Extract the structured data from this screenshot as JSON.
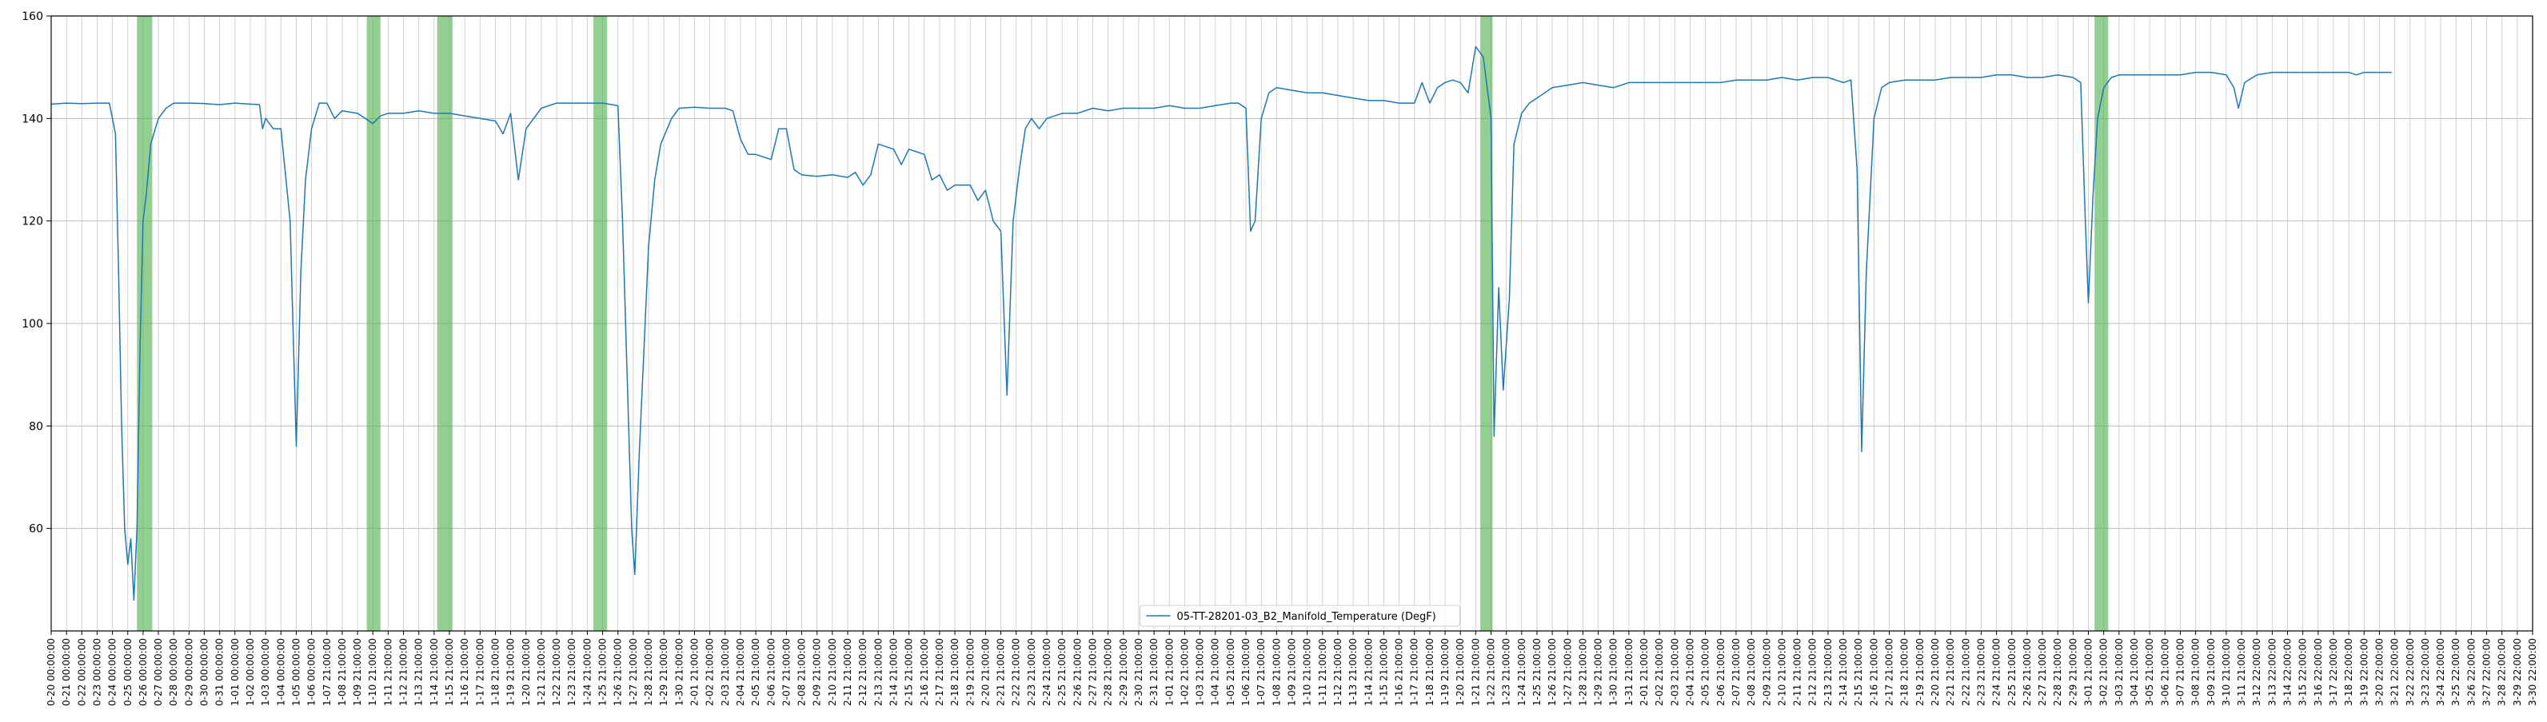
{
  "chart_data": {
    "type": "line",
    "title": "",
    "xlabel": "",
    "ylabel": "",
    "ylim": [
      40,
      160
    ],
    "y_ticks": [
      60,
      80,
      100,
      120,
      140,
      160
    ],
    "grid": true,
    "legend_position": "bottom-center",
    "x_tick_labels": [
      "0-20 00:00:00",
      "0-21 00:00:00",
      "0-22 00:00:00",
      "0-23 00:00:00",
      "0-24 00:00:00",
      "0-25 00:00:00",
      "0-26 00:00:00",
      "0-27 00:00:00",
      "0-28 00:00:00",
      "0-29 00:00:00",
      "0-30 00:00:00",
      "0-31 00:00:00",
      "1-01 00:00:00",
      "1-02 00:00:00",
      "1-03 00:00:00",
      "1-04 00:00:00",
      "1-05 00:00:00",
      "1-06 00:00:00",
      "1-07 21:00:00",
      "1-08 21:00:00",
      "1-09 21:00:00",
      "1-10 21:00:00",
      "1-11 21:00:00",
      "1-12 21:00:00",
      "1-13 21:00:00",
      "1-14 21:00:00",
      "1-15 21:00:00",
      "1-16 21:00:00",
      "1-17 21:00:00",
      "1-18 21:00:00",
      "1-19 21:00:00",
      "1-20 21:00:00",
      "1-21 21:00:00",
      "1-22 21:00:00",
      "1-23 21:00:00",
      "1-24 21:00:00",
      "1-25 21:00:00",
      "1-26 21:00:00",
      "1-27 21:00:00",
      "1-28 21:00:00",
      "1-29 21:00:00",
      "1-30 21:00:00",
      "2-01 21:00:00",
      "2-02 21:00:00",
      "2-03 21:00:00",
      "2-04 21:00:00",
      "2-05 21:00:00",
      "2-06 21:00:00",
      "2-07 21:00:00",
      "2-08 21:00:00",
      "2-09 21:00:00",
      "2-10 21:00:00",
      "2-11 21:00:00",
      "2-12 21:00:00",
      "2-13 21:00:00",
      "2-14 21:00:00",
      "2-15 21:00:00",
      "2-16 21:00:00",
      "2-17 21:00:00",
      "2-18 21:00:00",
      "2-19 21:00:00",
      "2-20 21:00:00",
      "2-21 21:00:00",
      "2-22 21:00:00",
      "2-23 21:00:00",
      "2-24 21:00:00",
      "2-25 21:00:00",
      "2-26 21:00:00",
      "2-27 21:00:00",
      "2-28 21:00:00",
      "2-29 21:00:00",
      "2-30 21:00:00",
      "2-31 21:00:00",
      "1-01 21:00:00",
      "1-02 21:00:00",
      "1-03 21:00:00",
      "1-04 21:00:00",
      "1-05 21:00:00",
      "1-06 21:00:00",
      "1-07 21:00:00",
      "1-08 21:00:00",
      "1-09 21:00:00",
      "1-10 21:00:00",
      "1-11 21:00:00",
      "1-12 21:00:00",
      "1-13 21:00:00",
      "1-14 21:00:00",
      "1-15 21:00:00",
      "1-16 21:00:00",
      "1-17 21:00:00",
      "1-18 21:00:00",
      "1-19 21:00:00",
      "1-20 21:00:00",
      "1-21 21:00:00",
      "1-22 21:00:00",
      "1-23 21:00:00",
      "1-24 21:00:00",
      "1-25 21:00:00",
      "1-26 21:00:00",
      "1-27 21:00:00",
      "1-28 21:00:00",
      "1-29 21:00:00",
      "1-30 21:00:00",
      "1-31 21:00:00",
      "2-01 21:00:00",
      "2-02 21:00:00",
      "2-03 21:00:00",
      "2-04 21:00:00",
      "2-05 21:00:00",
      "2-06 21:00:00",
      "2-07 21:00:00",
      "2-08 21:00:00",
      "2-09 21:00:00",
      "2-10 21:00:00",
      "2-11 21:00:00",
      "2-12 21:00:00",
      "2-13 21:00:00",
      "2-14 21:00:00",
      "2-15 21:00:00",
      "2-16 21:00:00",
      "2-17 21:00:00",
      "2-18 21:00:00",
      "2-19 21:00:00",
      "2-20 21:00:00",
      "2-21 21:00:00",
      "2-22 21:00:00",
      "2-23 21:00:00",
      "2-24 21:00:00",
      "2-25 21:00:00",
      "2-26 21:00:00",
      "2-27 21:00:00",
      "2-28 21:00:00",
      "2-29 21:00:00",
      "3-01 21:00:00",
      "3-02 21:00:00",
      "3-03 21:00:00",
      "3-04 21:00:00",
      "3-05 21:00:00",
      "3-06 21:00:00",
      "3-07 21:00:00",
      "3-08 21:00:00",
      "3-09 21:00:00",
      "3-10 21:00:00",
      "3-11 21:00:00",
      "3-12 22:00:00",
      "3-13 22:00:00",
      "3-14 22:00:00",
      "3-15 22:00:00",
      "3-16 22:00:00",
      "3-17 22:00:00",
      "3-18 22:00:00",
      "3-19 22:00:00",
      "3-20 22:00:00",
      "3-21 22:00:00",
      "3-22 22:00:00",
      "3-23 22:00:00",
      "3-24 22:00:00",
      "3-25 22:00:00",
      "3-26 22:00:00",
      "3-27 22:00:00",
      "3-28 22:00:00",
      "3-29 22:00:00",
      "3-30 22:00:00"
    ],
    "series": [
      {
        "name": "05-TT-28201-03_B2_Manifold_Temperature (DegF)",
        "color": "#1f77b4",
        "points": [
          [
            0,
            142.8
          ],
          [
            1,
            143
          ],
          [
            2,
            142.9
          ],
          [
            3,
            143
          ],
          [
            3.8,
            143
          ],
          [
            4.2,
            137
          ],
          [
            4.4,
            110
          ],
          [
            4.6,
            80
          ],
          [
            4.8,
            60
          ],
          [
            5,
            53
          ],
          [
            5.2,
            58
          ],
          [
            5.4,
            46
          ],
          [
            5.6,
            60
          ],
          [
            5.8,
            95
          ],
          [
            6.0,
            120
          ],
          [
            6.2,
            125
          ],
          [
            6.5,
            135
          ],
          [
            7,
            140
          ],
          [
            7.5,
            142
          ],
          [
            8,
            143
          ],
          [
            9,
            143
          ],
          [
            10,
            142.9
          ],
          [
            11,
            142.7
          ],
          [
            12,
            143
          ],
          [
            13,
            142.8
          ],
          [
            13.6,
            142.7
          ],
          [
            13.8,
            138
          ],
          [
            14,
            140
          ],
          [
            14.5,
            138
          ],
          [
            15,
            138
          ],
          [
            15.6,
            120
          ],
          [
            16.0,
            76
          ],
          [
            16.3,
            110
          ],
          [
            16.6,
            128
          ],
          [
            17,
            138
          ],
          [
            17.5,
            143
          ],
          [
            18,
            143
          ],
          [
            18.5,
            140
          ],
          [
            19,
            141.5
          ],
          [
            20,
            141
          ],
          [
            20.5,
            140
          ],
          [
            21,
            139
          ],
          [
            21.5,
            140.5
          ],
          [
            22,
            141
          ],
          [
            23,
            141
          ],
          [
            24,
            141.5
          ],
          [
            25,
            141
          ],
          [
            26,
            141
          ],
          [
            27,
            140.5
          ],
          [
            28,
            140
          ],
          [
            29,
            139.5
          ],
          [
            29.5,
            137
          ],
          [
            30,
            141
          ],
          [
            30.5,
            128
          ],
          [
            31,
            138
          ],
          [
            32,
            142
          ],
          [
            33,
            143
          ],
          [
            34,
            143
          ],
          [
            35,
            143
          ],
          [
            36,
            143
          ],
          [
            37,
            142.5
          ],
          [
            37.3,
            120
          ],
          [
            37.6,
            90
          ],
          [
            37.9,
            60
          ],
          [
            38.1,
            51
          ],
          [
            38.4,
            75
          ],
          [
            38.7,
            95
          ],
          [
            39,
            115
          ],
          [
            39.4,
            128
          ],
          [
            39.8,
            135
          ],
          [
            40.5,
            140
          ],
          [
            41,
            142
          ],
          [
            42,
            142.2
          ],
          [
            43,
            142
          ],
          [
            44,
            142
          ],
          [
            44.5,
            141.5
          ],
          [
            45,
            136
          ],
          [
            45.5,
            133
          ],
          [
            46,
            133
          ],
          [
            47,
            132
          ],
          [
            47.5,
            138
          ],
          [
            48,
            138
          ],
          [
            48.5,
            130
          ],
          [
            49,
            129
          ],
          [
            50,
            128.7
          ],
          [
            51,
            129
          ],
          [
            52,
            128.5
          ],
          [
            52.5,
            129.5
          ],
          [
            53,
            127
          ],
          [
            53.5,
            129
          ],
          [
            54,
            135
          ],
          [
            55,
            134
          ],
          [
            55.5,
            131
          ],
          [
            56,
            134
          ],
          [
            57,
            133
          ],
          [
            57.5,
            128
          ],
          [
            58,
            129
          ],
          [
            58.5,
            126
          ],
          [
            59,
            127
          ],
          [
            60,
            127
          ],
          [
            60.5,
            124
          ],
          [
            61,
            126
          ],
          [
            61.5,
            120
          ],
          [
            62,
            118
          ],
          [
            62.4,
            86
          ],
          [
            62.8,
            120
          ],
          [
            63.2,
            130
          ],
          [
            63.6,
            138
          ],
          [
            64,
            140
          ],
          [
            64.5,
            138
          ],
          [
            65,
            140
          ],
          [
            66,
            141
          ],
          [
            67,
            141
          ],
          [
            68,
            142
          ],
          [
            69,
            141.5
          ],
          [
            70,
            142
          ],
          [
            71,
            142
          ],
          [
            72,
            142
          ],
          [
            73,
            142.5
          ],
          [
            74,
            142
          ],
          [
            75,
            142
          ],
          [
            76,
            142.5
          ],
          [
            77,
            143
          ],
          [
            77.5,
            143
          ],
          [
            78,
            142
          ],
          [
            78.3,
            118
          ],
          [
            78.6,
            120
          ],
          [
            79,
            140
          ],
          [
            79.5,
            145
          ],
          [
            80,
            146
          ],
          [
            81,
            145.5
          ],
          [
            82,
            145
          ],
          [
            83,
            145
          ],
          [
            84,
            144.5
          ],
          [
            85,
            144
          ],
          [
            86,
            143.5
          ],
          [
            87,
            143.5
          ],
          [
            88,
            143
          ],
          [
            89,
            143
          ],
          [
            89.5,
            147
          ],
          [
            90,
            143
          ],
          [
            90.5,
            146
          ],
          [
            91,
            147
          ],
          [
            91.5,
            147.5
          ],
          [
            92,
            147
          ],
          [
            92.5,
            145
          ],
          [
            93,
            154
          ],
          [
            93.5,
            152
          ],
          [
            94,
            140
          ],
          [
            94.2,
            78
          ],
          [
            94.5,
            107
          ],
          [
            94.8,
            87
          ],
          [
            95.2,
            105
          ],
          [
            95.5,
            135
          ],
          [
            96,
            141
          ],
          [
            96.5,
            143
          ],
          [
            97,
            144
          ],
          [
            98,
            146
          ],
          [
            99,
            146.5
          ],
          [
            100,
            147
          ],
          [
            101,
            146.5
          ],
          [
            102,
            146
          ],
          [
            103,
            147
          ],
          [
            104,
            147
          ],
          [
            105,
            147
          ],
          [
            106,
            147
          ],
          [
            107,
            147
          ],
          [
            108,
            147
          ],
          [
            109,
            147
          ],
          [
            110,
            147.5
          ],
          [
            111,
            147.5
          ],
          [
            112,
            147.5
          ],
          [
            113,
            148
          ],
          [
            114,
            147.5
          ],
          [
            115,
            148
          ],
          [
            116,
            148
          ],
          [
            117,
            147
          ],
          [
            117.5,
            147.5
          ],
          [
            117.9,
            130
          ],
          [
            118.2,
            75
          ],
          [
            118.5,
            110
          ],
          [
            119,
            140
          ],
          [
            119.5,
            146
          ],
          [
            120,
            147
          ],
          [
            121,
            147.5
          ],
          [
            122,
            147.5
          ],
          [
            123,
            147.5
          ],
          [
            124,
            148
          ],
          [
            125,
            148
          ],
          [
            126,
            148
          ],
          [
            127,
            148.5
          ],
          [
            128,
            148.5
          ],
          [
            129,
            148
          ],
          [
            130,
            148
          ],
          [
            131,
            148.5
          ],
          [
            132,
            148
          ],
          [
            132.5,
            147
          ],
          [
            132.8,
            120
          ],
          [
            133,
            104
          ],
          [
            133.3,
            125
          ],
          [
            133.6,
            140
          ],
          [
            134,
            146
          ],
          [
            134.5,
            148
          ],
          [
            135,
            148.5
          ],
          [
            136,
            148.5
          ],
          [
            137,
            148.5
          ],
          [
            138,
            148.5
          ],
          [
            139,
            148.5
          ],
          [
            140,
            149
          ],
          [
            141,
            149
          ],
          [
            142,
            148.5
          ],
          [
            142.5,
            146
          ],
          [
            142.8,
            142
          ],
          [
            143.2,
            147
          ],
          [
            144,
            148.5
          ],
          [
            145,
            149
          ],
          [
            146,
            149
          ],
          [
            147,
            149
          ],
          [
            148,
            149
          ],
          [
            149,
            149
          ],
          [
            150,
            149
          ],
          [
            150.5,
            148.5
          ],
          [
            151,
            149
          ],
          [
            152,
            149
          ],
          [
            152.8,
            149
          ]
        ]
      }
    ],
    "highlight_bands": [
      {
        "x_start": 5.6,
        "x_end": 6.6,
        "color": "#4daf4a"
      },
      {
        "x_start": 20.6,
        "x_end": 21.5,
        "color": "#4daf4a"
      },
      {
        "x_start": 25.2,
        "x_end": 26.2,
        "color": "#4daf4a"
      },
      {
        "x_start": 35.4,
        "x_end": 36.3,
        "color": "#4daf4a"
      },
      {
        "x_start": 93.3,
        "x_end": 94.1,
        "color": "#4daf4a"
      },
      {
        "x_start": 133.4,
        "x_end": 134.3,
        "color": "#4daf4a"
      }
    ]
  }
}
